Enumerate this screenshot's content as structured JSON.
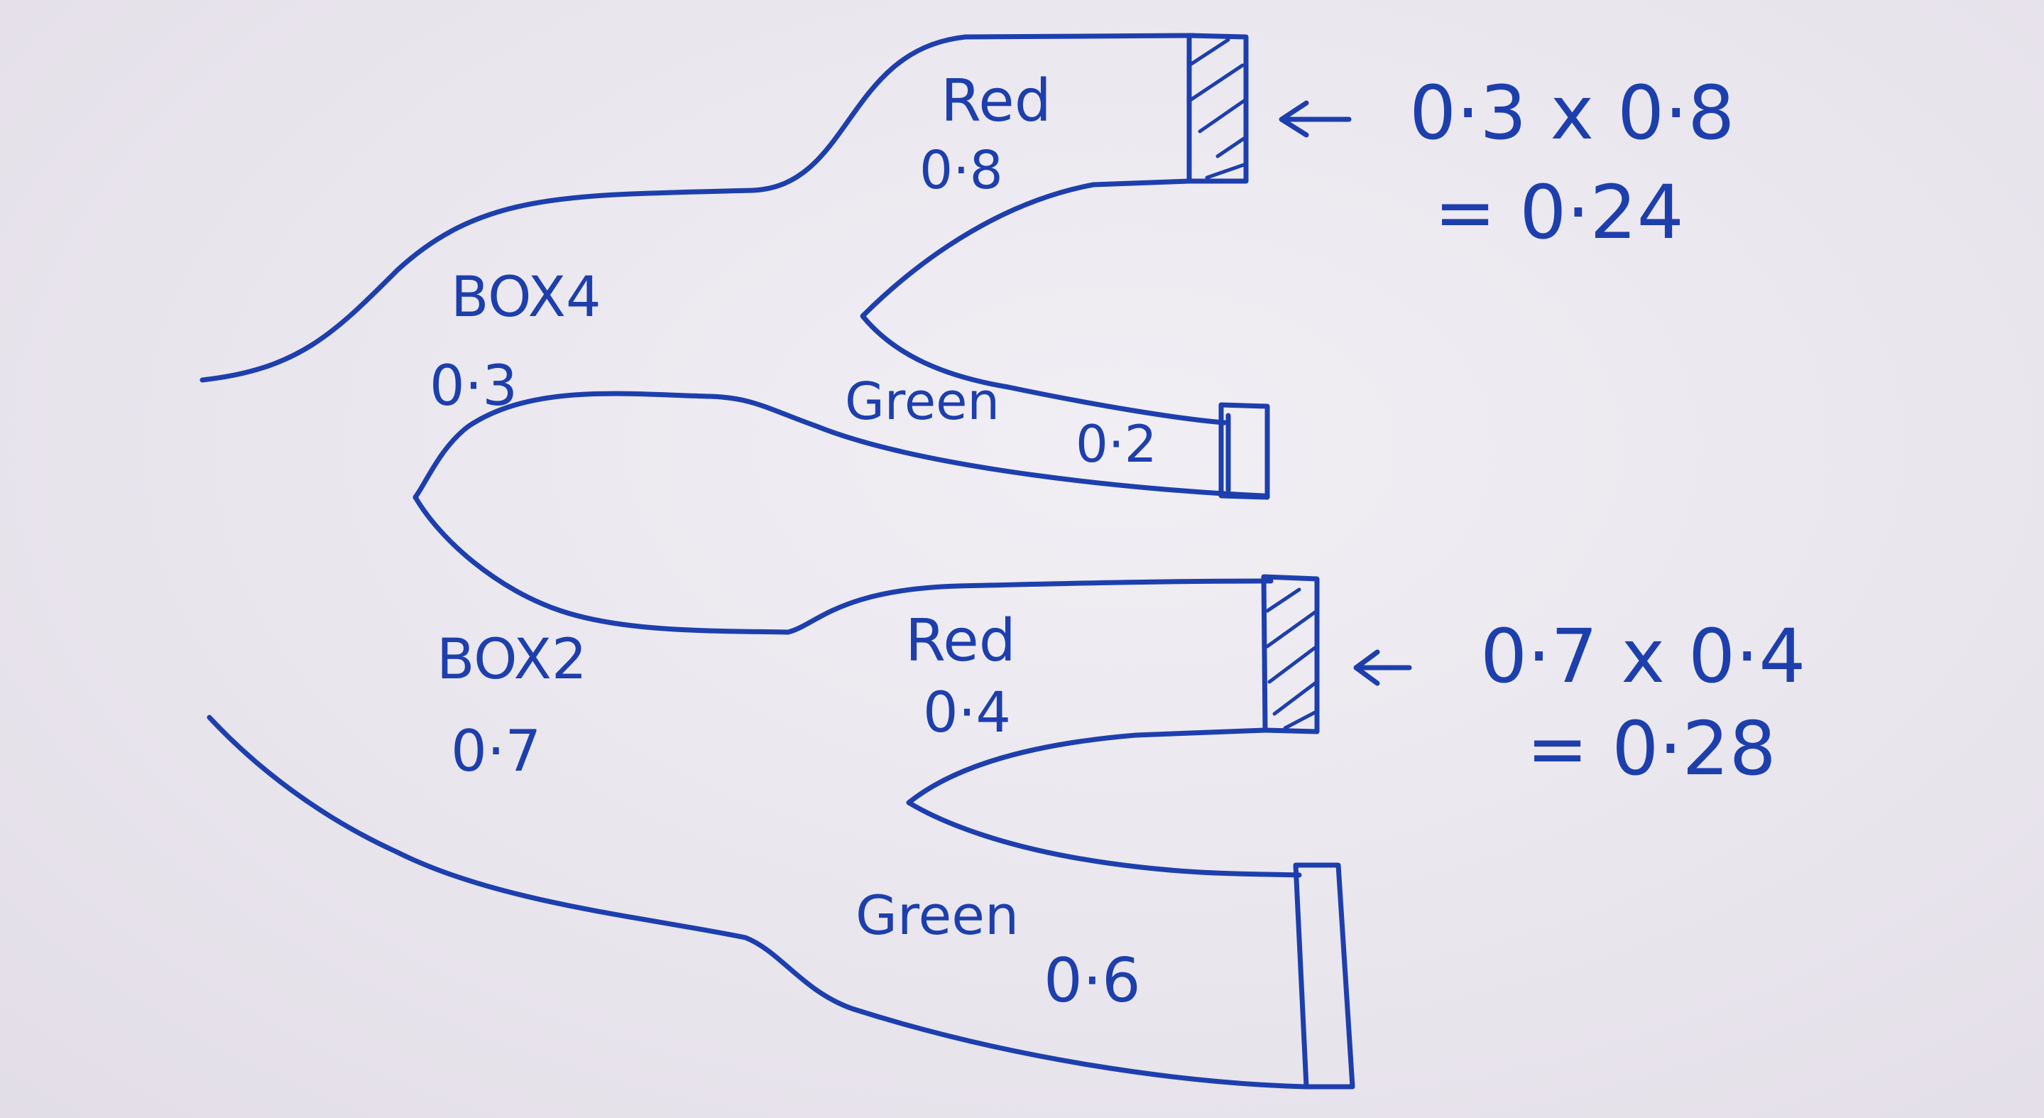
{
  "diagram": {
    "ink_color": "#1d3fae",
    "paper_color": "#ebe7ef",
    "branches": {
      "box4": {
        "name": "BOX4",
        "prob": "0·3"
      },
      "box2": {
        "name": "BOX2",
        "prob": "0·7"
      },
      "box4_red": {
        "name": "Red",
        "prob": "0·8",
        "highlighted": true
      },
      "box4_green": {
        "name": "Green",
        "prob": "0·2"
      },
      "box2_red": {
        "name": "Red",
        "prob": "0·4",
        "highlighted": true
      },
      "box2_green": {
        "name": "Green",
        "prob": "0·6"
      }
    },
    "calc1": {
      "expr": "0·3 x 0·8",
      "result": "= 0·24"
    },
    "calc2": {
      "expr": "0·7 x 0·4",
      "result": "= 0·28"
    }
  }
}
